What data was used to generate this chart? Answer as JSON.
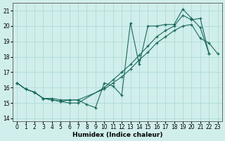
{
  "xlabel": "Humidex (Indice chaleur)",
  "background_color": "#d0eeeb",
  "grid_color": "#a8d8d4",
  "line_color": "#1a6b5a",
  "xlim": [
    -0.5,
    23.5
  ],
  "ylim": [
    13.8,
    21.5
  ],
  "xticks": [
    0,
    1,
    2,
    3,
    4,
    5,
    6,
    7,
    8,
    9,
    10,
    11,
    12,
    13,
    14,
    15,
    16,
    17,
    18,
    19,
    20,
    21,
    22,
    23
  ],
  "yticks": [
    14,
    15,
    16,
    17,
    18,
    19,
    20,
    21
  ],
  "s1_x": [
    0,
    1,
    2,
    3,
    4,
    5,
    6,
    7,
    8,
    9,
    10,
    11,
    12,
    13,
    14,
    15,
    16,
    17,
    18,
    19,
    20,
    21,
    22
  ],
  "s1_y": [
    16.3,
    15.9,
    15.7,
    15.3,
    15.3,
    15.2,
    15.2,
    15.2,
    14.9,
    14.7,
    16.3,
    16.1,
    15.5,
    20.2,
    17.5,
    20.0,
    20.0,
    20.1,
    20.1,
    21.1,
    20.5,
    19.9,
    18.2
  ],
  "s2_x": [
    0,
    1,
    2,
    3,
    4,
    5,
    6,
    7,
    10,
    11,
    12,
    13,
    14,
    15,
    16,
    17,
    18,
    19,
    20,
    21,
    22
  ],
  "s2_y": [
    16.3,
    15.9,
    15.7,
    15.3,
    15.2,
    15.1,
    15.0,
    15.0,
    16.0,
    16.5,
    17.0,
    17.5,
    18.1,
    18.7,
    19.3,
    19.7,
    20.0,
    20.7,
    20.4,
    20.5,
    18.2
  ],
  "s3_x": [
    0,
    1,
    2,
    3,
    4,
    5,
    6,
    7,
    10,
    11,
    12,
    13,
    14,
    15,
    16,
    17,
    18,
    19,
    20,
    21,
    22,
    23
  ],
  "s3_y": [
    16.3,
    15.9,
    15.7,
    15.3,
    15.2,
    15.1,
    15.2,
    15.2,
    15.9,
    16.3,
    16.7,
    17.2,
    17.8,
    18.3,
    18.9,
    19.3,
    19.7,
    20.0,
    20.1,
    19.2,
    18.9,
    18.2
  ]
}
